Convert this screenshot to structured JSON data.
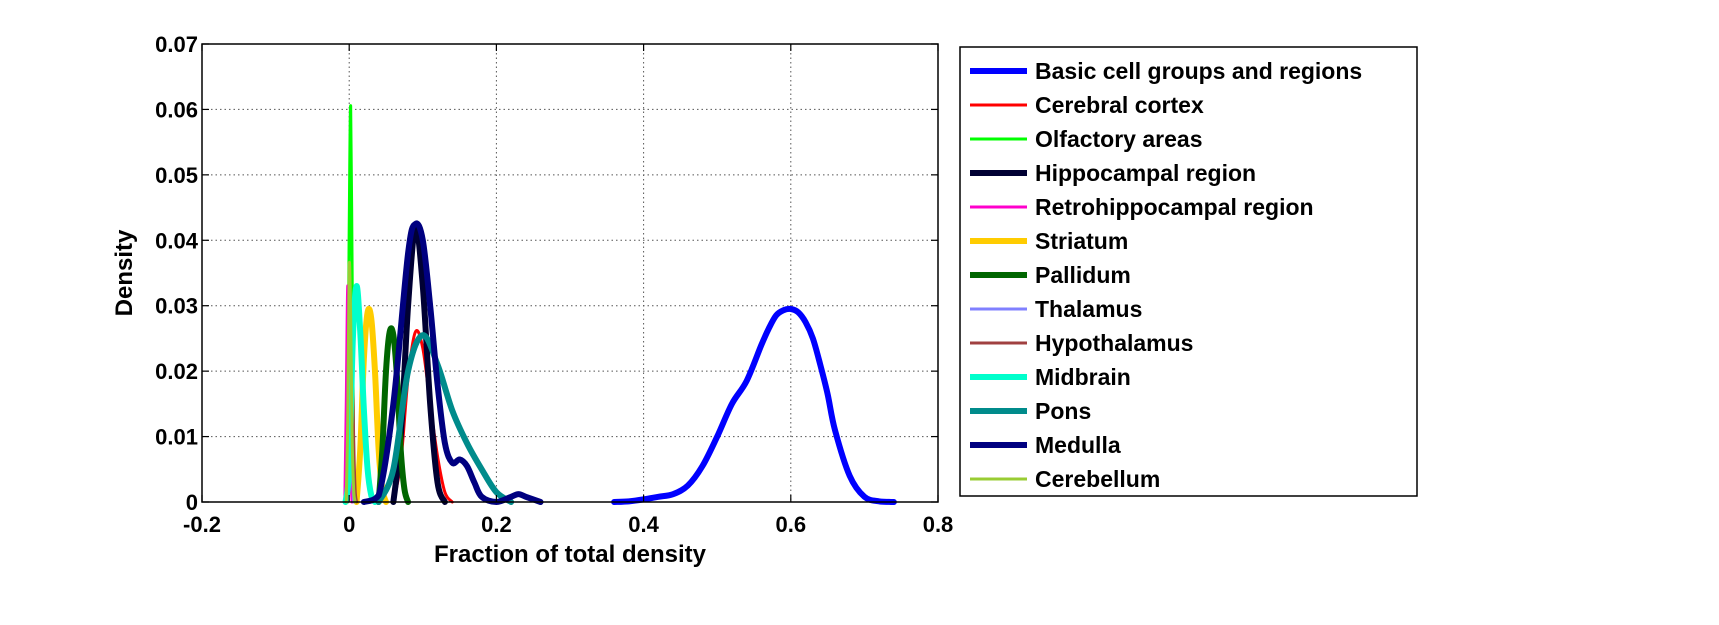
{
  "chart_data": {
    "type": "line",
    "title": "",
    "xlabel": "Fraction of total density",
    "ylabel": "Density",
    "xlim": [
      -0.2,
      0.8
    ],
    "ylim": [
      0,
      0.07
    ],
    "xticks": [
      -0.2,
      0,
      0.2,
      0.4,
      0.6,
      0.8
    ],
    "xtick_labels": [
      "-0.2",
      "0",
      "0.2",
      "0.4",
      "0.6",
      "0.8"
    ],
    "yticks": [
      0,
      0.01,
      0.02,
      0.03,
      0.04,
      0.05,
      0.06,
      0.07
    ],
    "ytick_labels": [
      "0",
      "0.01",
      "0.02",
      "0.03",
      "0.04",
      "0.05",
      "0.06",
      "0.07"
    ],
    "grid": true,
    "legend_position": "outside-right",
    "series": [
      {
        "name": "Basic cell groups and regions",
        "color": "#0000FF",
        "width": 6,
        "x": [
          0.36,
          0.38,
          0.4,
          0.42,
          0.44,
          0.46,
          0.48,
          0.5,
          0.52,
          0.54,
          0.56,
          0.57,
          0.58,
          0.59,
          0.6,
          0.61,
          0.62,
          0.63,
          0.64,
          0.65,
          0.66,
          0.68,
          0.7,
          0.72,
          0.74
        ],
        "y": [
          0,
          0.0001,
          0.0004,
          0.0008,
          0.0012,
          0.0025,
          0.0055,
          0.01,
          0.015,
          0.0185,
          0.024,
          0.0265,
          0.0285,
          0.0293,
          0.0295,
          0.029,
          0.0275,
          0.025,
          0.021,
          0.0165,
          0.011,
          0.004,
          0.0008,
          0.0001,
          0
        ]
      },
      {
        "name": "Cerebral cortex",
        "color": "#FF0000",
        "width": 3,
        "x": [
          0.06,
          0.07,
          0.08,
          0.09,
          0.1,
          0.11,
          0.12,
          0.13,
          0.14
        ],
        "y": [
          0,
          0.006,
          0.019,
          0.026,
          0.0235,
          0.015,
          0.007,
          0.0015,
          0
        ]
      },
      {
        "name": "Olfactory areas",
        "color": "#00FF00",
        "width": 3,
        "x": [
          -0.005,
          -0.002,
          0.0,
          0.002,
          0.004,
          0.006,
          0.008,
          0.01
        ],
        "y": [
          0,
          0.015,
          0.042,
          0.0605,
          0.035,
          0.008,
          0.001,
          0
        ]
      },
      {
        "name": "Hippocampal region",
        "color": "#000033",
        "width": 6,
        "x": [
          0.06,
          0.07,
          0.08,
          0.09,
          0.1,
          0.11,
          0.12,
          0.13
        ],
        "y": [
          0,
          0.01,
          0.03,
          0.042,
          0.033,
          0.015,
          0.003,
          0
        ]
      },
      {
        "name": "Retrohippocampal region",
        "color": "#FF00CC",
        "width": 3,
        "x": [
          -0.006,
          -0.004,
          -0.002,
          0.0,
          0.002,
          0.004
        ],
        "y": [
          0,
          0.015,
          0.033,
          0.02,
          0.005,
          0
        ]
      },
      {
        "name": "Striatum",
        "color": "#FFCC00",
        "width": 6,
        "x": [
          0.01,
          0.015,
          0.02,
          0.025,
          0.03,
          0.035,
          0.04,
          0.045,
          0.05
        ],
        "y": [
          0,
          0.008,
          0.022,
          0.029,
          0.028,
          0.02,
          0.008,
          0.002,
          0
        ]
      },
      {
        "name": "Pallidum",
        "color": "#006600",
        "width": 6,
        "x": [
          0.04,
          0.045,
          0.05,
          0.055,
          0.06,
          0.065,
          0.07,
          0.075,
          0.08
        ],
        "y": [
          0,
          0.008,
          0.02,
          0.026,
          0.0255,
          0.019,
          0.008,
          0.002,
          0
        ]
      },
      {
        "name": "Thalamus",
        "color": "#8080FF",
        "width": 3,
        "x": [
          -0.004,
          -0.002,
          0.0,
          0.002,
          0.004,
          0.006
        ],
        "y": [
          0,
          0.01,
          0.028,
          0.025,
          0.008,
          0
        ]
      },
      {
        "name": "Hypothalamus",
        "color": "#A04040",
        "width": 3,
        "x": [
          -0.002,
          0.0,
          0.002,
          0.004,
          0.006,
          0.008,
          0.01
        ],
        "y": [
          0,
          0.015,
          0.03,
          0.025,
          0.01,
          0.002,
          0
        ]
      },
      {
        "name": "Midbrain",
        "color": "#00FFCC",
        "width": 6,
        "x": [
          -0.005,
          0.0,
          0.005,
          0.01,
          0.015,
          0.02,
          0.025,
          0.03,
          0.035
        ],
        "y": [
          0,
          0.005,
          0.025,
          0.033,
          0.026,
          0.014,
          0.005,
          0.001,
          0
        ]
      },
      {
        "name": "Pons",
        "color": "#008B8B",
        "width": 6,
        "x": [
          0.04,
          0.06,
          0.08,
          0.1,
          0.12,
          0.14,
          0.16,
          0.18,
          0.2,
          0.22
        ],
        "y": [
          0,
          0.005,
          0.02,
          0.0255,
          0.021,
          0.014,
          0.009,
          0.005,
          0.0015,
          0
        ]
      },
      {
        "name": "Medulla",
        "color": "#000080",
        "width": 6,
        "x": [
          0.02,
          0.04,
          0.06,
          0.08,
          0.09,
          0.1,
          0.11,
          0.12,
          0.13,
          0.14,
          0.15,
          0.16,
          0.17,
          0.18,
          0.2,
          0.22,
          0.23,
          0.24,
          0.26
        ],
        "y": [
          0,
          0.001,
          0.015,
          0.038,
          0.0425,
          0.04,
          0.03,
          0.018,
          0.009,
          0.006,
          0.0065,
          0.0055,
          0.003,
          0.0008,
          0,
          0.0008,
          0.0012,
          0.0008,
          0
        ]
      },
      {
        "name": "Cerebellum",
        "color": "#99CC33",
        "width": 3,
        "x": [
          -0.004,
          -0.002,
          0.0,
          0.002,
          0.004,
          0.006,
          0.008
        ],
        "y": [
          0,
          0.012,
          0.036,
          0.028,
          0.01,
          0.002,
          0
        ]
      }
    ]
  }
}
